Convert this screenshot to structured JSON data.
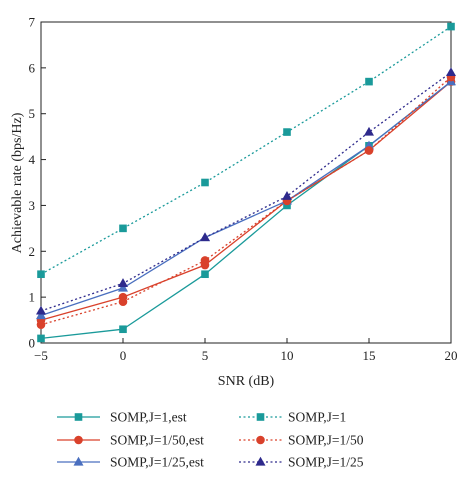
{
  "chart_data": {
    "type": "line",
    "title": "",
    "xlabel": "SNR (dB)",
    "ylabel": "Achievable rate (bps/Hz)",
    "x": [
      -5,
      0,
      5,
      10,
      15,
      20
    ],
    "xlim": [
      -5,
      20
    ],
    "ylim": [
      0,
      7
    ],
    "xticks": [
      -5,
      0,
      5,
      10,
      15,
      20
    ],
    "yticks": [
      0,
      1,
      2,
      3,
      4,
      5,
      6,
      7
    ],
    "xtick_labels": [
      "−5",
      "0",
      "5",
      "10",
      "15",
      "20"
    ],
    "ytick_labels": [
      "0",
      "1",
      "2",
      "3",
      "4",
      "5",
      "6",
      "7"
    ],
    "grid": false,
    "legend_placement": "bottom",
    "series": [
      {
        "name": "SOMP,J=1,est",
        "values": [
          0.1,
          0.3,
          1.5,
          3.0,
          4.3,
          5.7
        ],
        "color": "#1a9a9a",
        "marker": "square",
        "line": "solid"
      },
      {
        "name": "SOMP,J=1/50,est",
        "values": [
          0.5,
          1.0,
          1.7,
          3.1,
          4.2,
          5.7
        ],
        "color": "#d9412b",
        "marker": "circle",
        "line": "solid"
      },
      {
        "name": "SOMP,J=1/25,est",
        "values": [
          0.6,
          1.2,
          2.3,
          3.1,
          4.3,
          5.7
        ],
        "color": "#4a6fbf",
        "marker": "triangle",
        "line": "solid"
      },
      {
        "name": "SOMP,J=1",
        "values": [
          1.5,
          2.5,
          3.5,
          4.6,
          5.7,
          6.9
        ],
        "color": "#1a9a9a",
        "marker": "square",
        "line": "dotted"
      },
      {
        "name": "SOMP,J=1/50",
        "values": [
          0.4,
          0.9,
          1.8,
          3.1,
          4.2,
          5.8
        ],
        "color": "#d9412b",
        "marker": "circle",
        "line": "dotted"
      },
      {
        "name": "SOMP,J=1/25",
        "values": [
          0.7,
          1.3,
          2.3,
          3.2,
          4.6,
          5.9
        ],
        "color": "#2e2a8c",
        "marker": "triangle",
        "line": "dotted"
      }
    ]
  }
}
